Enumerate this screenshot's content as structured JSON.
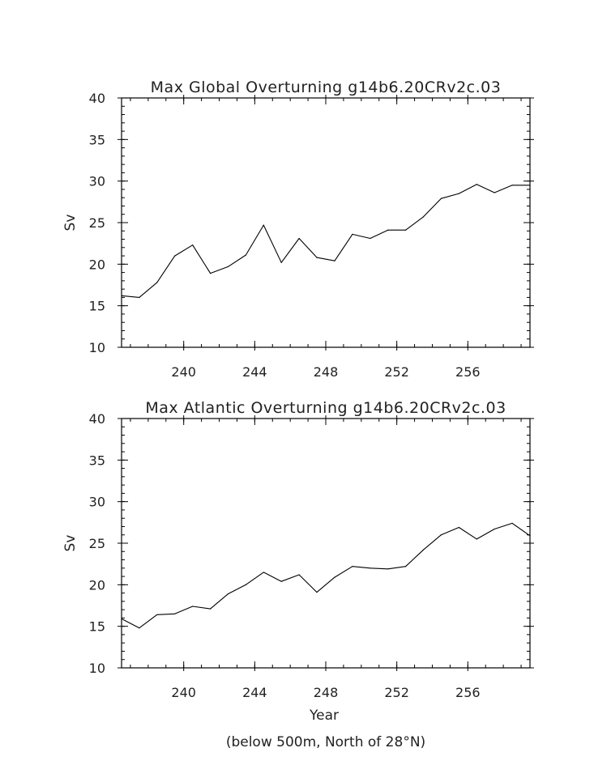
{
  "figure_footnote": "(below 500m, North of 28°N)",
  "chart_data": [
    {
      "type": "line",
      "title": "Max Global Overturning g14b6.20CRv2c.03",
      "xlabel": "",
      "ylabel": "Sv",
      "xlim": [
        236.5,
        259.5
      ],
      "ylim": [
        10,
        40
      ],
      "xticks": [
        240,
        244,
        248,
        252,
        256
      ],
      "yticks": [
        10,
        15,
        20,
        25,
        30,
        35,
        40
      ],
      "grid": false,
      "series": [
        {
          "x": [
            236.5,
            237.5,
            238.5,
            239.5,
            240.5,
            241.5,
            242.5,
            243.5,
            244.5,
            245.5,
            246.5,
            247.5,
            248.5,
            249.5,
            250.5,
            251.5,
            252.5,
            253.5,
            254.5,
            255.5,
            256.5,
            257.5,
            258.5,
            259.5
          ],
          "values": [
            16.2,
            16.0,
            17.8,
            21.0,
            22.3,
            18.9,
            19.7,
            21.1,
            24.7,
            20.2,
            23.1,
            20.8,
            20.4,
            23.6,
            23.1,
            24.1,
            24.1,
            25.7,
            27.9,
            28.5,
            29.6,
            28.6,
            29.5,
            29.5
          ]
        }
      ]
    },
    {
      "type": "line",
      "title": "Max Atlantic Overturning g14b6.20CRv2c.03",
      "xlabel": "Year",
      "ylabel": "Sv",
      "xlim": [
        236.5,
        259.5
      ],
      "ylim": [
        10,
        40
      ],
      "xticks": [
        240,
        244,
        248,
        252,
        256
      ],
      "yticks": [
        10,
        15,
        20,
        25,
        30,
        35,
        40
      ],
      "grid": false,
      "series": [
        {
          "x": [
            236.5,
            237.5,
            238.5,
            239.5,
            240.5,
            241.5,
            242.5,
            243.5,
            244.5,
            245.5,
            246.5,
            247.5,
            248.5,
            249.5,
            250.5,
            251.5,
            252.5,
            253.5,
            254.5,
            255.5,
            256.5,
            257.5,
            258.5,
            259.5
          ],
          "values": [
            15.9,
            14.8,
            16.4,
            16.5,
            17.4,
            17.1,
            18.9,
            20.0,
            21.5,
            20.4,
            21.2,
            19.1,
            20.9,
            22.2,
            22.0,
            21.9,
            22.2,
            24.2,
            26.0,
            26.9,
            25.5,
            26.7,
            27.4,
            25.9
          ]
        }
      ]
    }
  ]
}
